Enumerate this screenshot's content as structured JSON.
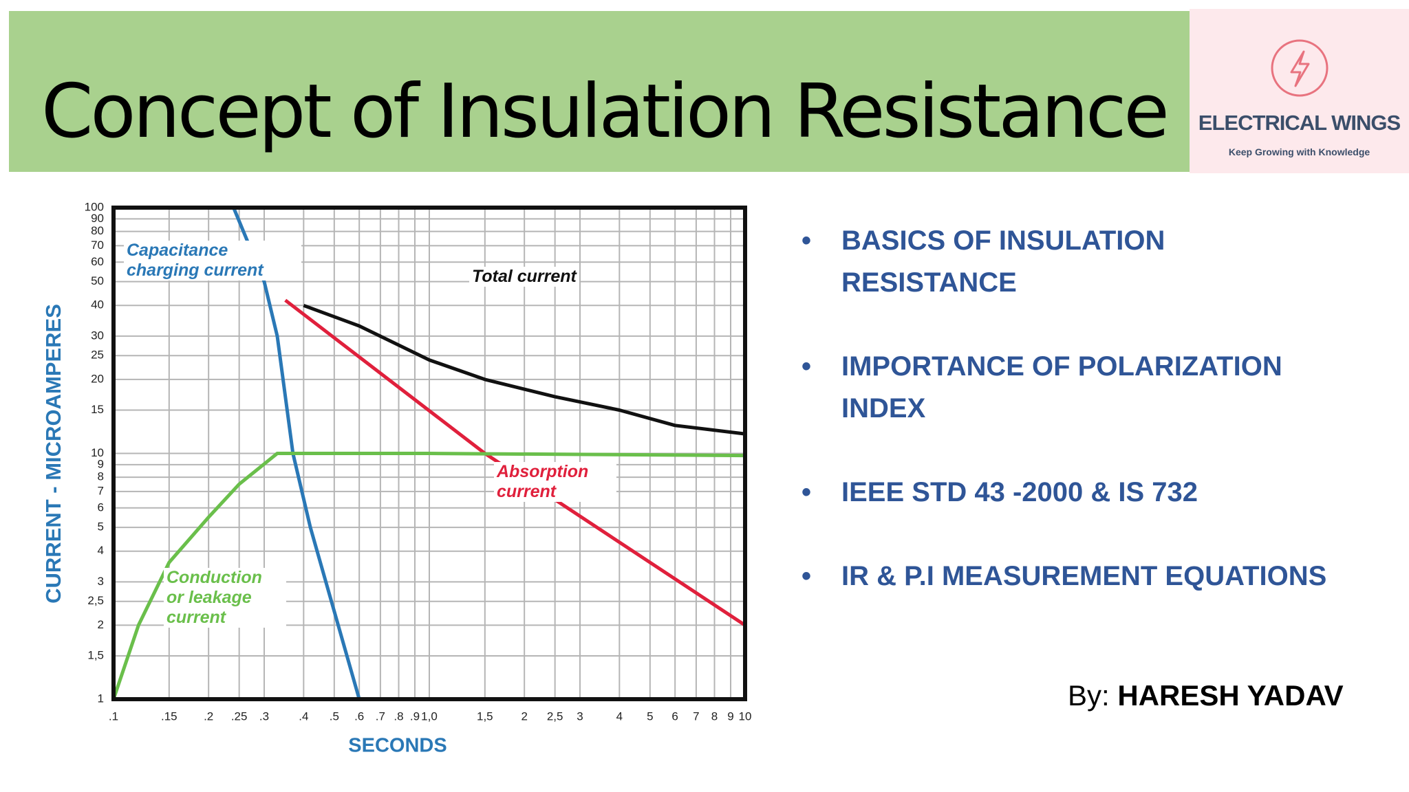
{
  "header": {
    "title": "Concept of Insulation Resistance"
  },
  "logo": {
    "name": "ELECTRICAL WINGS",
    "tagline": "Keep Growing with Knowledge"
  },
  "bullets": [
    "BASICS OF INSULATION RESISTANCE",
    "IMPORTANCE OF POLARIZATION INDEX",
    "IEEE STD 43 -2000 & IS 732",
    "IR  & P.I MEASUREMENT EQUATIONS"
  ],
  "author": {
    "prefix": "By:",
    "name": "HARESH YADAV"
  },
  "chart_data": {
    "type": "line",
    "xscale": "log",
    "yscale": "log",
    "grid": true,
    "xlabel": "SECONDS",
    "ylabel": "CURRENT - MICROAMPERES",
    "xlim": [
      0.1,
      10
    ],
    "ylim": [
      1,
      100
    ],
    "xticks": [
      {
        "value": 0.1,
        "label": ".1"
      },
      {
        "value": 0.15,
        "label": ".15"
      },
      {
        "value": 0.2,
        "label": ".2"
      },
      {
        "value": 0.25,
        "label": ".25"
      },
      {
        "value": 0.3,
        "label": ".3"
      },
      {
        "value": 0.4,
        "label": ".4"
      },
      {
        "value": 0.5,
        "label": ".5"
      },
      {
        "value": 0.6,
        "label": ".6"
      },
      {
        "value": 0.7,
        "label": ".7"
      },
      {
        "value": 0.8,
        "label": ".8"
      },
      {
        "value": 0.9,
        "label": ".9"
      },
      {
        "value": 1,
        "label": "1,0"
      },
      {
        "value": 1.5,
        "label": "1,5"
      },
      2,
      {
        "value": 2.5,
        "label": "2,5"
      },
      3,
      4,
      5,
      6,
      7,
      8,
      9,
      10
    ],
    "yticks": [
      1,
      {
        "value": 1.5,
        "label": "1,5"
      },
      2,
      {
        "value": 2.5,
        "label": "2,5"
      },
      3,
      4,
      5,
      6,
      7,
      8,
      9,
      10,
      15,
      20,
      25,
      30,
      40,
      50,
      60,
      70,
      80,
      90,
      100
    ],
    "series": [
      {
        "name": "Capacitance charging current",
        "color": "#2a78b6",
        "x": [
          0.24,
          0.3,
          0.33,
          0.37,
          0.42,
          0.6
        ],
        "values": [
          100,
          50,
          30,
          10,
          5,
          1
        ]
      },
      {
        "name": "Total current",
        "color": "#111111",
        "x": [
          0.4,
          0.6,
          1,
          1.5,
          2.5,
          4,
          6,
          10
        ],
        "values": [
          40,
          33,
          24,
          20,
          17,
          15,
          13,
          12
        ]
      },
      {
        "name": "Absorption current",
        "color": "#e0203c",
        "x": [
          0.35,
          1.5,
          10
        ],
        "values": [
          42,
          10,
          2
        ]
      },
      {
        "name": "Conduction or leakage current",
        "color": "#6abf4b",
        "x": [
          0.1,
          0.12,
          0.15,
          0.2,
          0.25,
          0.33,
          1,
          10
        ],
        "values": [
          1,
          2,
          3.6,
          5.5,
          7.5,
          10,
          10,
          9.8
        ]
      }
    ]
  }
}
